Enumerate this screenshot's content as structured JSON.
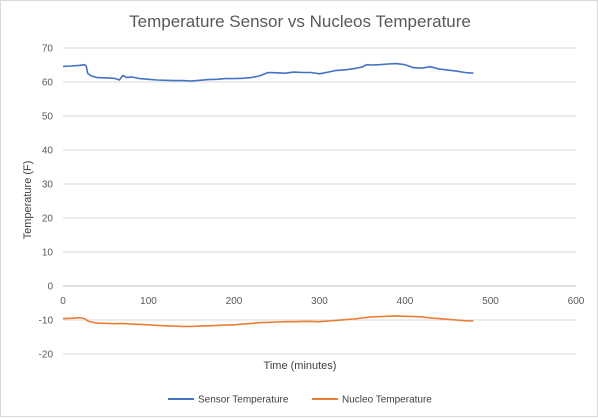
{
  "chart_data": {
    "type": "line",
    "title": "Temperature Sensor vs Nucleos Temperature",
    "xlabel": "Time (minutes)",
    "ylabel": "Temperature (F)",
    "xlim": [
      0,
      600
    ],
    "ylim": [
      -20,
      70
    ],
    "x_ticks": [
      0,
      100,
      200,
      300,
      400,
      500,
      600
    ],
    "y_ticks": [
      -20,
      -10,
      0,
      10,
      20,
      30,
      40,
      50,
      60,
      70
    ],
    "grid": "horizontal",
    "legend_position": "bottom",
    "series": [
      {
        "name": "Sensor Temperature",
        "color": "#4472c4",
        "points": [
          [
            0,
            64.6
          ],
          [
            10,
            64.7
          ],
          [
            20,
            64.9
          ],
          [
            25,
            65.1
          ],
          [
            27,
            64.8
          ],
          [
            29,
            62.5
          ],
          [
            33,
            61.8
          ],
          [
            40,
            61.3
          ],
          [
            50,
            61.2
          ],
          [
            60,
            61.1
          ],
          [
            66,
            60.6
          ],
          [
            70,
            61.9
          ],
          [
            75,
            61.3
          ],
          [
            80,
            61.5
          ],
          [
            90,
            61.0
          ],
          [
            100,
            60.8
          ],
          [
            110,
            60.6
          ],
          [
            120,
            60.5
          ],
          [
            130,
            60.4
          ],
          [
            140,
            60.4
          ],
          [
            150,
            60.3
          ],
          [
            160,
            60.5
          ],
          [
            170,
            60.7
          ],
          [
            180,
            60.8
          ],
          [
            190,
            61.0
          ],
          [
            200,
            61.0
          ],
          [
            210,
            61.1
          ],
          [
            220,
            61.3
          ],
          [
            230,
            61.8
          ],
          [
            240,
            62.8
          ],
          [
            250,
            62.7
          ],
          [
            260,
            62.6
          ],
          [
            270,
            62.9
          ],
          [
            280,
            62.8
          ],
          [
            290,
            62.8
          ],
          [
            300,
            62.4
          ],
          [
            310,
            62.9
          ],
          [
            320,
            63.4
          ],
          [
            330,
            63.6
          ],
          [
            340,
            63.9
          ],
          [
            350,
            64.4
          ],
          [
            355,
            65.1
          ],
          [
            360,
            65.0
          ],
          [
            370,
            65.1
          ],
          [
            380,
            65.3
          ],
          [
            390,
            65.4
          ],
          [
            400,
            65.1
          ],
          [
            410,
            64.2
          ],
          [
            420,
            64.1
          ],
          [
            430,
            64.5
          ],
          [
            440,
            63.8
          ],
          [
            450,
            63.5
          ],
          [
            460,
            63.2
          ],
          [
            470,
            62.8
          ],
          [
            480,
            62.6
          ]
        ]
      },
      {
        "name": "Nucleo Temperature",
        "color": "#ed7d31",
        "points": [
          [
            0,
            -9.6
          ],
          [
            10,
            -9.5
          ],
          [
            20,
            -9.3
          ],
          [
            25,
            -9.6
          ],
          [
            30,
            -10.4
          ],
          [
            40,
            -10.9
          ],
          [
            50,
            -11.0
          ],
          [
            60,
            -11.1
          ],
          [
            70,
            -11.0
          ],
          [
            80,
            -11.2
          ],
          [
            90,
            -11.3
          ],
          [
            100,
            -11.4
          ],
          [
            110,
            -11.6
          ],
          [
            120,
            -11.7
          ],
          [
            130,
            -11.8
          ],
          [
            140,
            -11.9
          ],
          [
            150,
            -11.9
          ],
          [
            160,
            -11.8
          ],
          [
            170,
            -11.7
          ],
          [
            180,
            -11.6
          ],
          [
            190,
            -11.5
          ],
          [
            200,
            -11.4
          ],
          [
            210,
            -11.2
          ],
          [
            220,
            -11.0
          ],
          [
            230,
            -10.8
          ],
          [
            240,
            -10.7
          ],
          [
            250,
            -10.6
          ],
          [
            260,
            -10.5
          ],
          [
            270,
            -10.5
          ],
          [
            280,
            -10.4
          ],
          [
            290,
            -10.4
          ],
          [
            300,
            -10.5
          ],
          [
            310,
            -10.3
          ],
          [
            320,
            -10.1
          ],
          [
            330,
            -9.9
          ],
          [
            340,
            -9.7
          ],
          [
            350,
            -9.4
          ],
          [
            360,
            -9.1
          ],
          [
            370,
            -9.0
          ],
          [
            380,
            -8.9
          ],
          [
            390,
            -8.8
          ],
          [
            400,
            -8.9
          ],
          [
            410,
            -9.0
          ],
          [
            420,
            -9.1
          ],
          [
            430,
            -9.4
          ],
          [
            440,
            -9.6
          ],
          [
            450,
            -9.8
          ],
          [
            460,
            -10.0
          ],
          [
            470,
            -10.2
          ],
          [
            480,
            -10.3
          ]
        ]
      }
    ]
  }
}
